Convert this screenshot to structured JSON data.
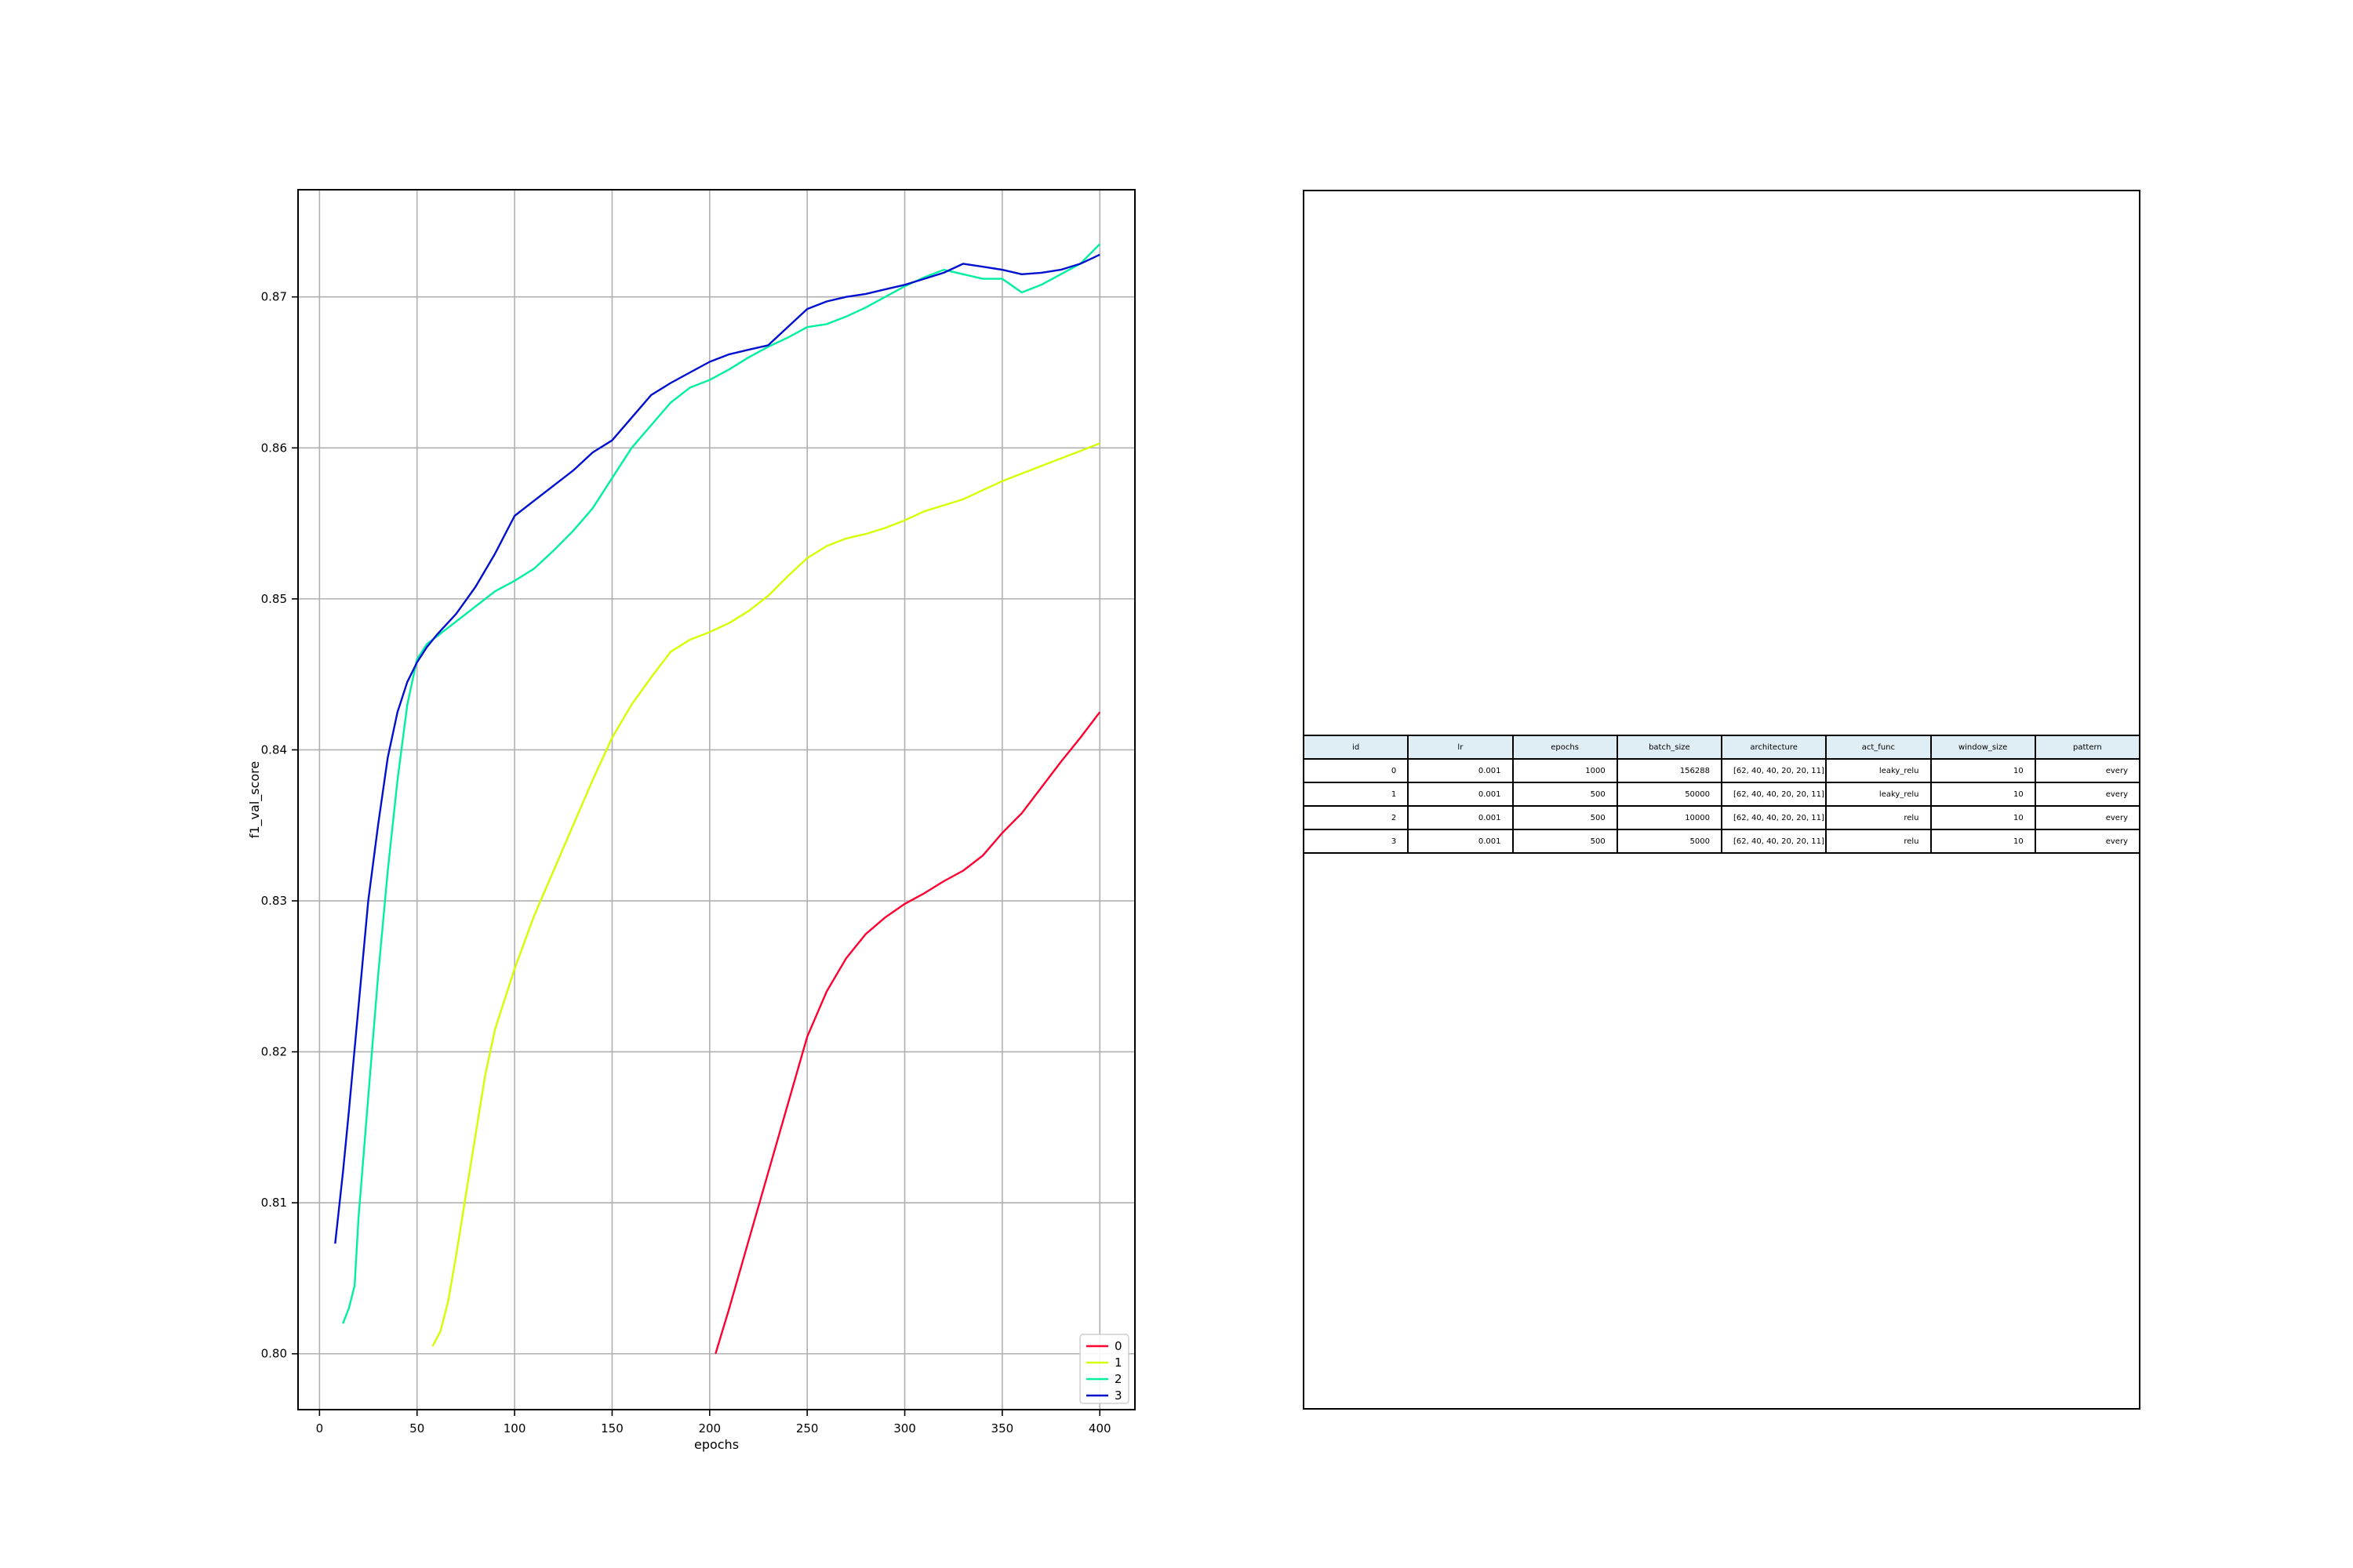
{
  "chart_data": {
    "type": "line",
    "xlabel": "epochs",
    "ylabel": "f1_val_score",
    "xlim": [
      -11,
      418
    ],
    "ylim": [
      0.7963,
      0.8771
    ],
    "xticks": [
      0,
      50,
      100,
      150,
      200,
      250,
      300,
      350,
      400
    ],
    "yticks": [
      0.8,
      0.81,
      0.82,
      0.83,
      0.84,
      0.85,
      0.86,
      0.87
    ],
    "ytick_labels": [
      "0.80",
      "0.81",
      "0.82",
      "0.83",
      "0.84",
      "0.85",
      "0.86",
      "0.87"
    ],
    "grid": true,
    "legend": "lower-right",
    "series": [
      {
        "name": "0",
        "color": "#ff0030",
        "x": [
          203,
          210,
          220,
          230,
          240,
          250,
          260,
          270,
          280,
          290,
          300,
          310,
          320,
          330,
          340,
          350,
          360,
          370,
          380,
          390,
          400
        ],
        "y": [
          0.8,
          0.803,
          0.8075,
          0.812,
          0.8165,
          0.821,
          0.824,
          0.8262,
          0.8278,
          0.8289,
          0.8298,
          0.8305,
          0.8313,
          0.832,
          0.833,
          0.8345,
          0.8358,
          0.8375,
          0.8392,
          0.8408,
          0.8425
        ]
      },
      {
        "name": "1",
        "color": "#d4ff00",
        "x": [
          58,
          62,
          66,
          70,
          75,
          80,
          85,
          90,
          100,
          110,
          120,
          130,
          140,
          150,
          160,
          170,
          180,
          190,
          200,
          210,
          220,
          230,
          240,
          250,
          260,
          270,
          280,
          290,
          300,
          310,
          320,
          330,
          340,
          350,
          360,
          370,
          380,
          390,
          400
        ],
        "y": [
          0.8005,
          0.8015,
          0.8035,
          0.8065,
          0.8105,
          0.8145,
          0.8185,
          0.8215,
          0.8255,
          0.829,
          0.832,
          0.835,
          0.838,
          0.8408,
          0.843,
          0.8448,
          0.8465,
          0.8473,
          0.8478,
          0.8484,
          0.8492,
          0.8502,
          0.8515,
          0.8527,
          0.8535,
          0.854,
          0.8543,
          0.8547,
          0.8552,
          0.8558,
          0.8562,
          0.8566,
          0.8572,
          0.8578,
          0.8583,
          0.8588,
          0.8593,
          0.8598,
          0.8603
        ]
      },
      {
        "name": "2",
        "color": "#00f0a0",
        "x": [
          12,
          15,
          18,
          20,
          25,
          30,
          35,
          40,
          45,
          50,
          55,
          60,
          65,
          70,
          80,
          90,
          100,
          110,
          120,
          130,
          140,
          150,
          160,
          170,
          180,
          190,
          200,
          210,
          220,
          230,
          240,
          250,
          260,
          270,
          280,
          290,
          300,
          310,
          320,
          330,
          340,
          350,
          360,
          370,
          380,
          390,
          400
        ],
        "y": [
          0.802,
          0.803,
          0.8045,
          0.809,
          0.817,
          0.825,
          0.832,
          0.838,
          0.843,
          0.846,
          0.847,
          0.8475,
          0.848,
          0.8485,
          0.8495,
          0.8505,
          0.8512,
          0.852,
          0.8532,
          0.8545,
          0.856,
          0.858,
          0.86,
          0.8615,
          0.863,
          0.864,
          0.8645,
          0.8652,
          0.866,
          0.8667,
          0.8673,
          0.868,
          0.8682,
          0.8687,
          0.8693,
          0.87,
          0.8707,
          0.8713,
          0.8718,
          0.8715,
          0.8712,
          0.8712,
          0.8703,
          0.8708,
          0.8715,
          0.8722,
          0.8735
        ]
      },
      {
        "name": "3",
        "color": "#0010d0",
        "x": [
          8,
          12,
          15,
          20,
          25,
          30,
          35,
          40,
          45,
          50,
          55,
          60,
          70,
          80,
          90,
          100,
          110,
          120,
          130,
          140,
          150,
          160,
          170,
          180,
          190,
          200,
          210,
          220,
          230,
          240,
          250,
          260,
          270,
          280,
          290,
          300,
          310,
          320,
          330,
          340,
          350,
          360,
          370,
          380,
          390,
          400
        ],
        "y": [
          0.8073,
          0.812,
          0.816,
          0.823,
          0.83,
          0.835,
          0.8395,
          0.8425,
          0.8445,
          0.8458,
          0.8468,
          0.8476,
          0.849,
          0.8508,
          0.853,
          0.8555,
          0.8565,
          0.8575,
          0.8585,
          0.8597,
          0.8605,
          0.862,
          0.8635,
          0.8643,
          0.865,
          0.8657,
          0.8662,
          0.8665,
          0.8668,
          0.868,
          0.8692,
          0.8697,
          0.87,
          0.8702,
          0.8705,
          0.8708,
          0.8712,
          0.8716,
          0.8722,
          0.872,
          0.8718,
          0.8715,
          0.8716,
          0.8718,
          0.8722,
          0.8728
        ]
      }
    ]
  },
  "table": {
    "columns": [
      "id",
      "lr",
      "epochs",
      "batch_size",
      "architecture",
      "act_func",
      "window_size",
      "pattern"
    ],
    "rows": [
      [
        "0",
        "0.001",
        "1000",
        "156288",
        "[62, 40, 40, 20, 20, 11]",
        "leaky_relu",
        "10",
        "every"
      ],
      [
        "1",
        "0.001",
        "500",
        "50000",
        "[62, 40, 40, 20, 20, 11]",
        "leaky_relu",
        "10",
        "every"
      ],
      [
        "2",
        "0.001",
        "500",
        "10000",
        "[62, 40, 40, 20, 20, 11]",
        "relu",
        "10",
        "every"
      ],
      [
        "3",
        "0.001",
        "500",
        "5000",
        "[62, 40, 40, 20, 20, 11]",
        "relu",
        "10",
        "every"
      ]
    ]
  }
}
